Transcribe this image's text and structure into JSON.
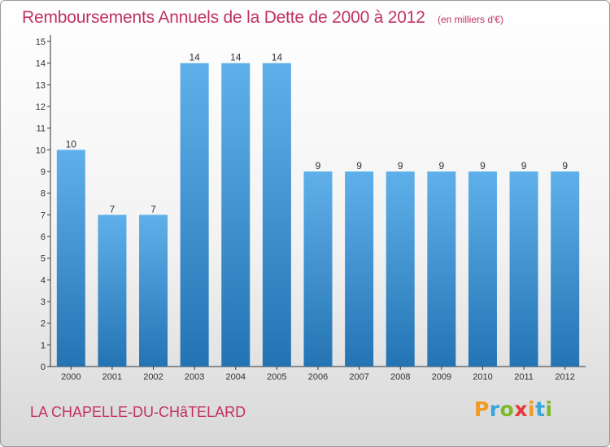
{
  "header": {
    "title": "Remboursements Annuels de la Dette de 2000 à 2012",
    "unit": "(en milliers d'€)"
  },
  "footer": {
    "commune": "LA CHAPELLE-DU-CHâTELARD",
    "logo": "Proxiti"
  },
  "colors": {
    "title": "#c2325f",
    "bar_top": "#5fb0ea",
    "bar_bottom": "#2474b4"
  },
  "chart_data": {
    "type": "bar",
    "title": "Remboursements Annuels de la Dette de 2000 à 2012",
    "xlabel": "",
    "ylabel": "",
    "categories": [
      "2000",
      "2001",
      "2002",
      "2003",
      "2004",
      "2005",
      "2006",
      "2007",
      "2008",
      "2009",
      "2010",
      "2011",
      "2012"
    ],
    "values": [
      10,
      7,
      7,
      14,
      14,
      14,
      9,
      9,
      9,
      9,
      9,
      9,
      9
    ],
    "ylim": [
      0,
      15
    ],
    "yticks": [
      "0",
      "1",
      "2",
      "3",
      "4",
      "5",
      "6",
      "7",
      "8",
      "9",
      "10",
      "11",
      "12",
      "13",
      "14",
      "15"
    ],
    "grid": false,
    "legend": "none"
  }
}
